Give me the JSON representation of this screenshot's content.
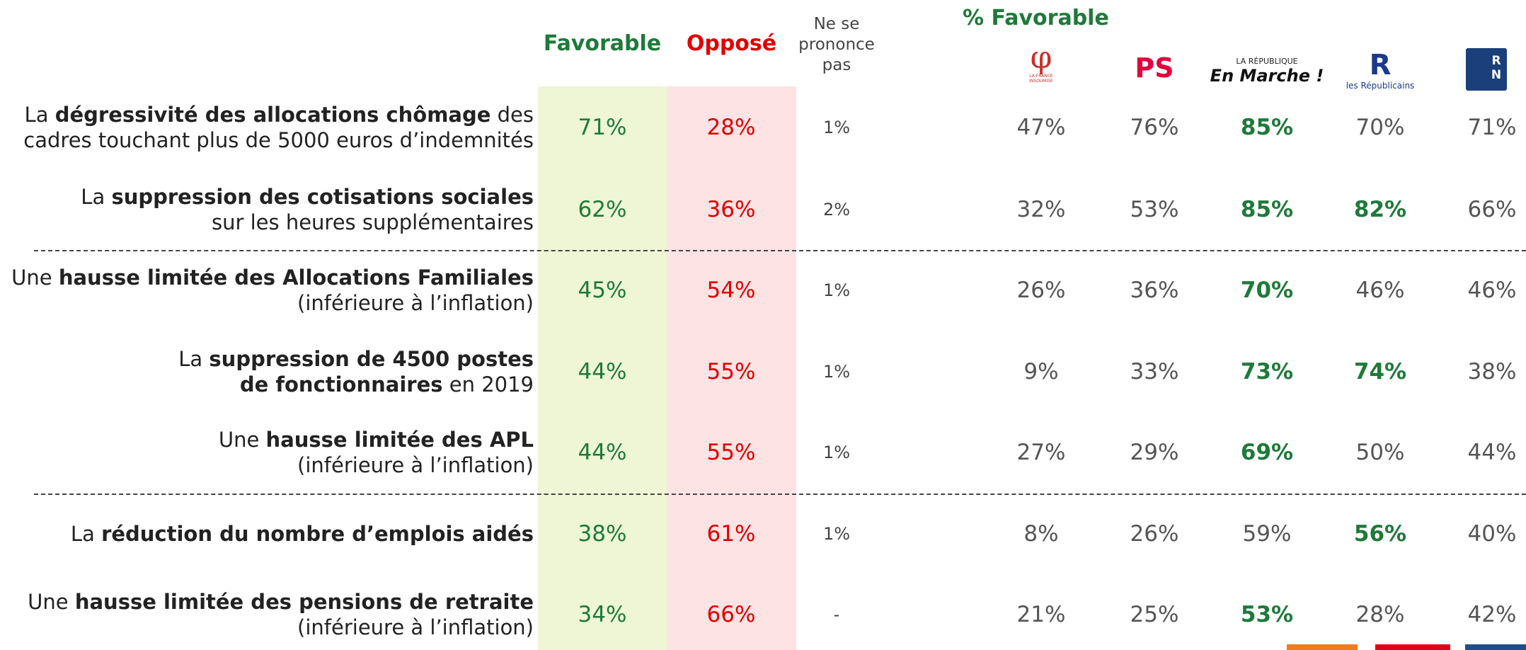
{
  "header": {
    "favorable": "Favorable",
    "oppose": "Opposé",
    "nsp": "Ne se prononce pas",
    "pct_favorable": "% Favorable",
    "parties": [
      {
        "symbol": "φ",
        "caption": "LA FRANCE INSOUMISE"
      },
      {
        "symbol": "PS",
        "caption": ""
      },
      {
        "symbol": "En Marche !",
        "caption": "LA RÉPUBLIQUE"
      },
      {
        "symbol": "R",
        "caption": "les Républicains"
      },
      {
        "symbol": "R N",
        "caption": ""
      }
    ]
  },
  "sections": [
    [
      {
        "lines": [
          [
            {
              "text": "La ",
              "bold": false
            },
            {
              "text": "dégressivité des allocations chômage",
              "bold": true
            },
            {
              "text": " des",
              "bold": false
            }
          ],
          [
            {
              "text": "cadres touchant plus de 5000 euros d’indemnités",
              "bold": false
            }
          ]
        ],
        "favorable": "71%",
        "oppose": "28%",
        "nsp": "1%",
        "parties": [
          {
            "text": "47%",
            "bold": false
          },
          {
            "text": "76%",
            "bold": false
          },
          {
            "text": "85%",
            "bold": true
          },
          {
            "text": "70%",
            "bold": false
          },
          {
            "text": "71%",
            "bold": false
          }
        ]
      },
      {
        "lines": [
          [
            {
              "text": "La ",
              "bold": false
            },
            {
              "text": "suppression des cotisations sociales",
              "bold": true
            }
          ],
          [
            {
              "text": "sur les heures supplémentaires",
              "bold": false
            }
          ]
        ],
        "favorable": "62%",
        "oppose": "36%",
        "nsp": "2%",
        "parties": [
          {
            "text": "32%",
            "bold": false
          },
          {
            "text": "53%",
            "bold": false
          },
          {
            "text": "85%",
            "bold": true
          },
          {
            "text": "82%",
            "bold": true
          },
          {
            "text": "66%",
            "bold": false
          }
        ]
      }
    ],
    [
      {
        "lines": [
          [
            {
              "text": "Une ",
              "bold": false
            },
            {
              "text": "hausse limitée des Allocations Familiales",
              "bold": true
            }
          ],
          [
            {
              "text": "(inférieure à l’inflation)",
              "bold": false
            }
          ]
        ],
        "favorable": "45%",
        "oppose": "54%",
        "nsp": "1%",
        "parties": [
          {
            "text": "26%",
            "bold": false
          },
          {
            "text": "36%",
            "bold": false
          },
          {
            "text": "70%",
            "bold": true
          },
          {
            "text": "46%",
            "bold": false
          },
          {
            "text": "46%",
            "bold": false
          }
        ]
      },
      {
        "lines": [
          [
            {
              "text": "La ",
              "bold": false
            },
            {
              "text": "suppression de 4500 postes",
              "bold": true
            }
          ],
          [
            {
              "text": "de fonctionnaires",
              "bold": true
            },
            {
              "text": " en 2019",
              "bold": false
            }
          ]
        ],
        "favorable": "44%",
        "oppose": "55%",
        "nsp": "1%",
        "parties": [
          {
            "text": "9%",
            "bold": false
          },
          {
            "text": "33%",
            "bold": false
          },
          {
            "text": "73%",
            "bold": true
          },
          {
            "text": "74%",
            "bold": true
          },
          {
            "text": "38%",
            "bold": false
          }
        ]
      },
      {
        "lines": [
          [
            {
              "text": "Une ",
              "bold": false
            },
            {
              "text": "hausse limitée des APL",
              "bold": true
            }
          ],
          [
            {
              "text": "(inférieure à l’inflation)",
              "bold": false
            }
          ]
        ],
        "favorable": "44%",
        "oppose": "55%",
        "nsp": "1%",
        "parties": [
          {
            "text": "27%",
            "bold": false
          },
          {
            "text": "29%",
            "bold": false
          },
          {
            "text": "69%",
            "bold": true
          },
          {
            "text": "50%",
            "bold": false
          },
          {
            "text": "44%",
            "bold": false
          }
        ]
      }
    ],
    [
      {
        "lines": [
          [
            {
              "text": "La ",
              "bold": false
            },
            {
              "text": "réduction du nombre d’emplois aidés",
              "bold": true
            }
          ]
        ],
        "favorable": "38%",
        "oppose": "61%",
        "nsp": "1%",
        "parties": [
          {
            "text": "8%",
            "bold": false
          },
          {
            "text": "26%",
            "bold": false
          },
          {
            "text": "59%",
            "bold": false
          },
          {
            "text": "56%",
            "bold": true
          },
          {
            "text": "40%",
            "bold": false
          }
        ]
      },
      {
        "lines": [
          [
            {
              "text": "Une ",
              "bold": false
            },
            {
              "text": "hausse limitée des pensions de retraite",
              "bold": true
            }
          ],
          [
            {
              "text": "(inférieure à l’inflation)",
              "bold": false
            }
          ]
        ],
        "favorable": "34%",
        "oppose": "66%",
        "nsp": "-",
        "parties": [
          {
            "text": "21%",
            "bold": false
          },
          {
            "text": "25%",
            "bold": false
          },
          {
            "text": "53%",
            "bold": true
          },
          {
            "text": "28%",
            "bold": false
          },
          {
            "text": "42%",
            "bold": false
          }
        ]
      }
    ]
  ]
}
